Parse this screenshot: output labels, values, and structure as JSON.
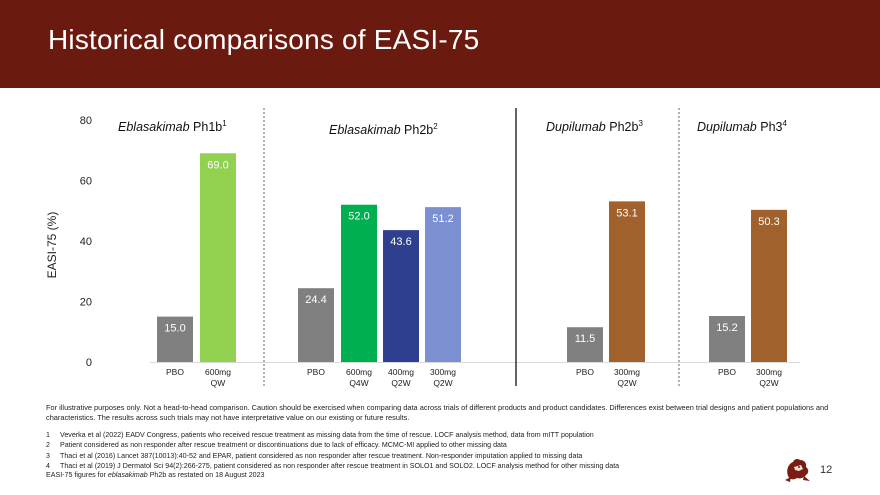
{
  "header": {
    "title": "Historical comparisons of EASI-75"
  },
  "colors": {
    "header_bg": "#6b1a10",
    "pbo": "#808080",
    "light_green": "#92d050",
    "green": "#00b050",
    "navy": "#2f3f8f",
    "periwinkle": "#7b8fd1",
    "brown": "#a0612c"
  },
  "chart_data": {
    "type": "bar",
    "ylabel": "EASI-75 (%)",
    "ylim": [
      0,
      80
    ],
    "yticks": [
      0,
      20,
      40,
      60,
      80
    ],
    "groups": [
      {
        "title_italic": "Eblasakimab",
        "title_rest": " Ph1b",
        "sup": "1",
        "bars": [
          {
            "label_lines": [
              "PBO"
            ],
            "value": 15.0,
            "value_label": "15.0",
            "color": "pbo"
          },
          {
            "label_lines": [
              "600mg",
              "QW"
            ],
            "value": 69.0,
            "value_label": "69.0",
            "color": "light_green"
          }
        ]
      },
      {
        "title_italic": "Eblasakimab",
        "title_rest": " Ph2b",
        "sup": "2",
        "bars": [
          {
            "label_lines": [
              "PBO"
            ],
            "value": 24.4,
            "value_label": "24.4",
            "color": "pbo"
          },
          {
            "label_lines": [
              "600mg",
              "Q4W"
            ],
            "value": 52.0,
            "value_label": "52.0",
            "color": "green"
          },
          {
            "label_lines": [
              "400mg",
              "Q2W"
            ],
            "value": 43.6,
            "value_label": "43.6",
            "color": "navy"
          },
          {
            "label_lines": [
              "300mg",
              "Q2W"
            ],
            "value": 51.2,
            "value_label": "51.2",
            "color": "periwinkle"
          }
        ]
      },
      {
        "title_italic": "Dupilumab",
        "title_rest": " Ph2b",
        "sup": "3",
        "bars": [
          {
            "label_lines": [
              "PBO"
            ],
            "value": 11.5,
            "value_label": "11.5",
            "color": "pbo"
          },
          {
            "label_lines": [
              "300mg",
              "Q2W"
            ],
            "value": 53.1,
            "value_label": "53.1",
            "color": "brown"
          }
        ]
      },
      {
        "title_italic": "Dupilumab",
        "title_rest": " Ph3",
        "sup": "4",
        "bars": [
          {
            "label_lines": [
              "PBO"
            ],
            "value": 15.2,
            "value_label": "15.2",
            "color": "pbo"
          },
          {
            "label_lines": [
              "300mg",
              "Q2W"
            ],
            "value": 50.3,
            "value_label": "50.3",
            "color": "brown"
          }
        ]
      }
    ]
  },
  "disclaimer": "For illustrative purposes only. Not a head-to-head comparison. Caution should be exercised when comparing data across trials of different products and product candidates.  Differences exist between trial designs and patient populations and characteristics. The results across such trials may not have interpretative value on our existing or future results.",
  "footnotes": [
    {
      "num": "1",
      "text": "Veverka et al (2022) EADV Congress, patients who received rescue treatment as missing data from the time of rescue. LOCF analysis method, data from mITT population"
    },
    {
      "num": "2",
      "text": "Patient considered as non responder after rescue treatment or discontinuations due to lack of efficacy. MCMC-MI applied to other missing data"
    },
    {
      "num": "3",
      "text": "Thaci et al (2016) Lancet 387(10013):40-52 and EPAR, patient considered as non responder after rescue treatment. Non-responder imputation applied to missing data"
    },
    {
      "num": "4",
      "text": "Thaci et al (2019) J Dermatol Sci 94(2):266-275, patient considered as non responder after rescue treatment in SOLO1 and SOLO2. LOCF analysis method for other missing data"
    }
  ],
  "restated": {
    "prefix": "EASI-75 figures for ",
    "italic": "eblasakimab",
    "suffix": " Ph2b as restated on 18 August 2023"
  },
  "page_number": "12",
  "logo_icon": "lion-mascot-icon"
}
